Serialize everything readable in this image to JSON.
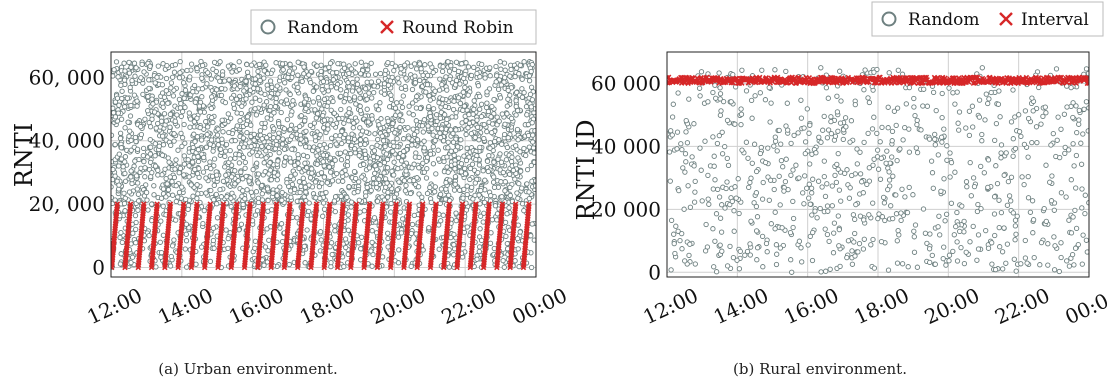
{
  "chart_data": [
    {
      "type": "scatter",
      "caption": "(a) Urban environment.",
      "ylabel": "RNTI",
      "x_ticks": [
        "12:00",
        "14:00",
        "16:00",
        "18:00",
        "20:00",
        "22:00",
        "00:00"
      ],
      "y_ticks": [
        {
          "value": 0,
          "label": "0"
        },
        {
          "value": 20000,
          "label": "20, 000"
        },
        {
          "value": 40000,
          "label": "40, 000"
        },
        {
          "value": 60000,
          "label": "60, 000"
        }
      ],
      "xlim_hours": [
        12,
        24
      ],
      "ylim": [
        -3000,
        68000
      ],
      "grid": true,
      "legend_position": "top-right",
      "series": [
        {
          "name": "Random",
          "marker": "o",
          "color": "#6e8080",
          "description": "~4000 points uniformly distributed over 12:00-00:00, RNTI 0-65,000, denser above 20,000"
        },
        {
          "name": "Round Robin",
          "marker": "x",
          "color": "#d62728",
          "pattern": {
            "type": "sawtooth",
            "period_hours": 0.375,
            "min": 0,
            "max": 20000
          }
        }
      ]
    },
    {
      "type": "scatter",
      "caption": "(b) Rural environment.",
      "ylabel": "RNTI ID",
      "x_ticks": [
        "12:00",
        "14:00",
        "16:00",
        "18:00",
        "20:00",
        "22:00",
        "00:00"
      ],
      "y_ticks": [
        {
          "value": 0,
          "label": "0"
        },
        {
          "value": 20000,
          "label": "20 000"
        },
        {
          "value": 40000,
          "label": "40 000"
        },
        {
          "value": 60000,
          "label": "60 000"
        }
      ],
      "xlim_hours": [
        12,
        24
      ],
      "ylim": [
        -1500,
        70000
      ],
      "grid": true,
      "legend_position": "above-right",
      "series": [
        {
          "name": "Random",
          "marker": "o",
          "color": "#6e8080",
          "description": "~900 points uniformly distributed over 12:00-00:00, RNTI 0-65,000"
        },
        {
          "name": "Interval",
          "marker": "x",
          "color": "#d62728",
          "pattern": {
            "type": "band",
            "min": 60000,
            "max": 62000
          }
        }
      ]
    }
  ]
}
